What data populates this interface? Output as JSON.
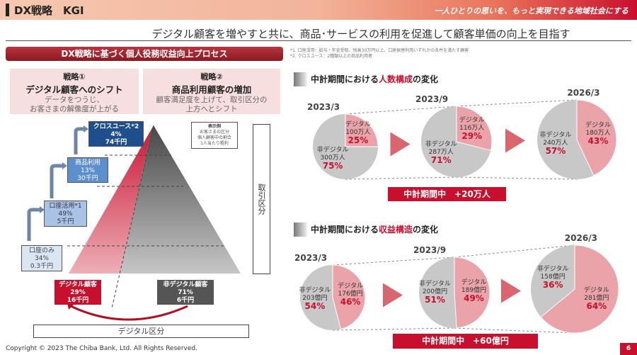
{
  "header": {
    "title": "DX戦略　KGI",
    "slogan": "一人ひとりの思いを、もっと実現できる地域社会にする"
  },
  "subtitle": "デジタル顧客を増やすと共に、商品･サービスの利用を促進して顧客単価の向上を目指す",
  "left": {
    "banner": "DX戦略に基づく個人役務収益向上プロセス",
    "strategy1": {
      "num": "戦略①",
      "title": "デジタル顧客へのシフト",
      "desc1": "データをつうじ、",
      "desc2": "お客さまの解像度が上がる"
    },
    "strategy2": {
      "num": "戦略②",
      "title": "商品利用顧客の増加",
      "desc1": "顧客満足度を上げて、取引区分の",
      "desc2": "上方へとシフト"
    },
    "levels": [
      {
        "name": "クロスユース*2",
        "pct": "4%",
        "profit": "74千円"
      },
      {
        "name": "商品利用",
        "pct": "13%",
        "profit": "30千円"
      },
      {
        "name": "口座活用*1",
        "pct": "49%",
        "profit": "5千円"
      },
      {
        "name": "口座のみ",
        "pct": "34%",
        "profit": "0.3千円"
      }
    ],
    "legend": {
      "title": "表示例",
      "l1": "お客さまの区分",
      "l2": "個人顧客中の割合",
      "l3": "1人当たり粗利"
    },
    "digital": {
      "name": "デジタル顧客",
      "pct": "29%",
      "profit": "16千円"
    },
    "nondigital": {
      "name": "非デジタル顧客",
      "pct": "71%",
      "profit": "6千円"
    },
    "vaxis": "取引区分",
    "haxis": "デジタル区分"
  },
  "footnotes": [
    "*1. 口座活用：給与・年金受取、残高30万円以上、口座振替利用いずれかの条件を満たす顧客",
    "*2. クロスユース：2種類以上の商品利用者"
  ],
  "section1": {
    "pre": "中計期間における",
    "hl": "人数構成",
    "post": "の変化",
    "result": "中計期間中　+20万人"
  },
  "section2": {
    "pre": "中計期間における",
    "hl": "収益構造",
    "post": "の変化",
    "result": "中計期間中　+60億円"
  },
  "chart_data": [
    {
      "type": "pie",
      "title": "人数構成",
      "pies": [
        {
          "label": "2023/3",
          "slices": [
            {
              "name": "デジタル",
              "amount": "100万人",
              "pct": 25
            },
            {
              "name": "非デジタル",
              "amount": "300万人",
              "pct": 75
            }
          ]
        },
        {
          "label": "2023/9",
          "slices": [
            {
              "name": "デジタル",
              "amount": "116万人",
              "pct": 29
            },
            {
              "name": "非デジタル",
              "amount": "287万人",
              "pct": 71
            }
          ]
        },
        {
          "label": "2026/3",
          "slices": [
            {
              "name": "デジタル",
              "amount": "180万人",
              "pct": 43
            },
            {
              "name": "非デジタル",
              "amount": "240万人",
              "pct": 57
            }
          ]
        }
      ]
    },
    {
      "type": "pie",
      "title": "収益構造",
      "pies": [
        {
          "label": "2023/3",
          "slices": [
            {
              "name": "デジタル",
              "amount": "176億円",
              "pct": 46
            },
            {
              "name": "非デジタル",
              "amount": "203億円",
              "pct": 54
            }
          ]
        },
        {
          "label": "2023/9",
          "slices": [
            {
              "name": "デジタル",
              "amount": "189億円",
              "pct": 49
            },
            {
              "name": "非デジタル",
              "amount": "200億円",
              "pct": 51
            }
          ]
        },
        {
          "label": "2026/3",
          "slices": [
            {
              "name": "デジタル",
              "amount": "281億円",
              "pct": 64
            },
            {
              "name": "非デジタル",
              "amount": "158億円",
              "pct": 36
            }
          ]
        }
      ]
    }
  ],
  "colors": {
    "accent": "#c8102e",
    "digital": "#eaa3a8",
    "nondigital": "#c8c8c8"
  },
  "footer": {
    "copyright": "Copyright © 2023 The Chiba Bank, Ltd. All Rights Reserved.",
    "page": "6"
  }
}
